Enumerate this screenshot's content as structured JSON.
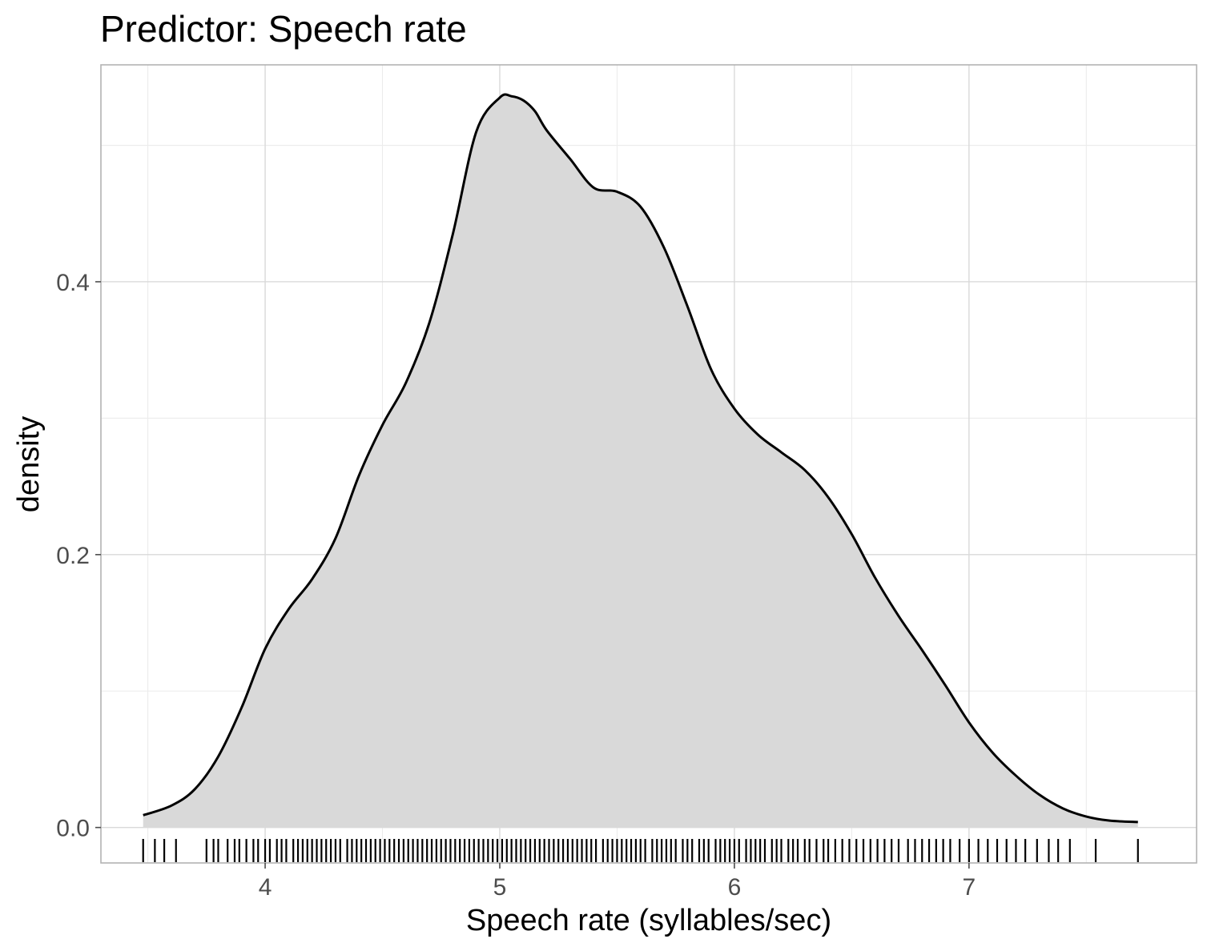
{
  "chart_data": {
    "type": "area",
    "title": "Predictor: Speech rate",
    "xlabel": "Speech rate (syllables/sec)",
    "ylabel": "density",
    "xlim": [
      3.3,
      7.97
    ],
    "ylim": [
      -0.026,
      0.559
    ],
    "x_ticks": [
      4,
      5,
      6,
      7
    ],
    "x_tick_labels": [
      "4",
      "5",
      "6",
      "7"
    ],
    "y_ticks": [
      0.0,
      0.2,
      0.4
    ],
    "y_tick_labels": [
      "0.0",
      "0.2",
      "0.4"
    ],
    "grid": true,
    "legend": "none",
    "fill_color": "#d9d9d9",
    "line_color": "#000000",
    "series": [
      {
        "x": [
          3.48,
          3.6,
          3.7,
          3.8,
          3.9,
          4.0,
          4.1,
          4.2,
          4.3,
          4.4,
          4.5,
          4.6,
          4.7,
          4.8,
          4.9,
          5.0,
          5.05,
          5.1,
          5.15,
          5.2,
          5.3,
          5.4,
          5.5,
          5.6,
          5.7,
          5.8,
          5.9,
          6.0,
          6.1,
          6.2,
          6.3,
          6.4,
          6.5,
          6.6,
          6.7,
          6.8,
          6.9,
          7.0,
          7.1,
          7.2,
          7.3,
          7.4,
          7.5,
          7.6,
          7.72
        ],
        "y": [
          0.009,
          0.016,
          0.028,
          0.052,
          0.088,
          0.131,
          0.16,
          0.182,
          0.212,
          0.258,
          0.295,
          0.326,
          0.37,
          0.435,
          0.51,
          0.535,
          0.536,
          0.533,
          0.525,
          0.511,
          0.49,
          0.469,
          0.466,
          0.455,
          0.425,
          0.382,
          0.336,
          0.307,
          0.288,
          0.275,
          0.262,
          0.242,
          0.215,
          0.183,
          0.155,
          0.13,
          0.104,
          0.077,
          0.055,
          0.038,
          0.024,
          0.014,
          0.008,
          0.005,
          0.004
        ]
      }
    ],
    "rug": [
      3.48,
      3.53,
      3.57,
      3.62,
      3.75,
      3.78,
      3.8,
      3.84,
      3.87,
      3.89,
      3.92,
      3.95,
      3.97,
      4.0,
      4.02,
      4.05,
      4.07,
      4.09,
      4.12,
      4.14,
      4.16,
      4.18,
      4.2,
      4.22,
      4.24,
      4.26,
      4.28,
      4.3,
      4.32,
      4.35,
      4.37,
      4.39,
      4.41,
      4.43,
      4.45,
      4.47,
      4.49,
      4.51,
      4.53,
      4.55,
      4.57,
      4.59,
      4.61,
      4.63,
      4.65,
      4.67,
      4.69,
      4.71,
      4.73,
      4.75,
      4.77,
      4.79,
      4.81,
      4.83,
      4.85,
      4.87,
      4.89,
      4.91,
      4.93,
      4.95,
      4.97,
      4.99,
      5.01,
      5.03,
      5.05,
      5.07,
      5.09,
      5.11,
      5.13,
      5.15,
      5.17,
      5.19,
      5.21,
      5.23,
      5.25,
      5.27,
      5.29,
      5.31,
      5.33,
      5.35,
      5.37,
      5.39,
      5.41,
      5.44,
      5.46,
      5.48,
      5.5,
      5.52,
      5.54,
      5.56,
      5.58,
      5.6,
      5.62,
      5.65,
      5.67,
      5.69,
      5.71,
      5.73,
      5.75,
      5.78,
      5.8,
      5.82,
      5.85,
      5.87,
      5.89,
      5.92,
      5.94,
      5.96,
      5.98,
      6.0,
      6.02,
      6.05,
      6.07,
      6.09,
      6.11,
      6.13,
      6.16,
      6.18,
      6.2,
      6.23,
      6.25,
      6.27,
      6.3,
      6.32,
      6.35,
      6.38,
      6.4,
      6.43,
      6.46,
      6.49,
      6.52,
      6.55,
      6.58,
      6.61,
      6.64,
      6.67,
      6.7,
      6.74,
      6.77,
      6.8,
      6.83,
      6.86,
      6.89,
      6.92,
      6.96,
      7.0,
      7.04,
      7.08,
      7.12,
      7.16,
      7.2,
      7.24,
      7.29,
      7.34,
      7.38,
      7.43,
      7.54,
      7.72
    ]
  }
}
